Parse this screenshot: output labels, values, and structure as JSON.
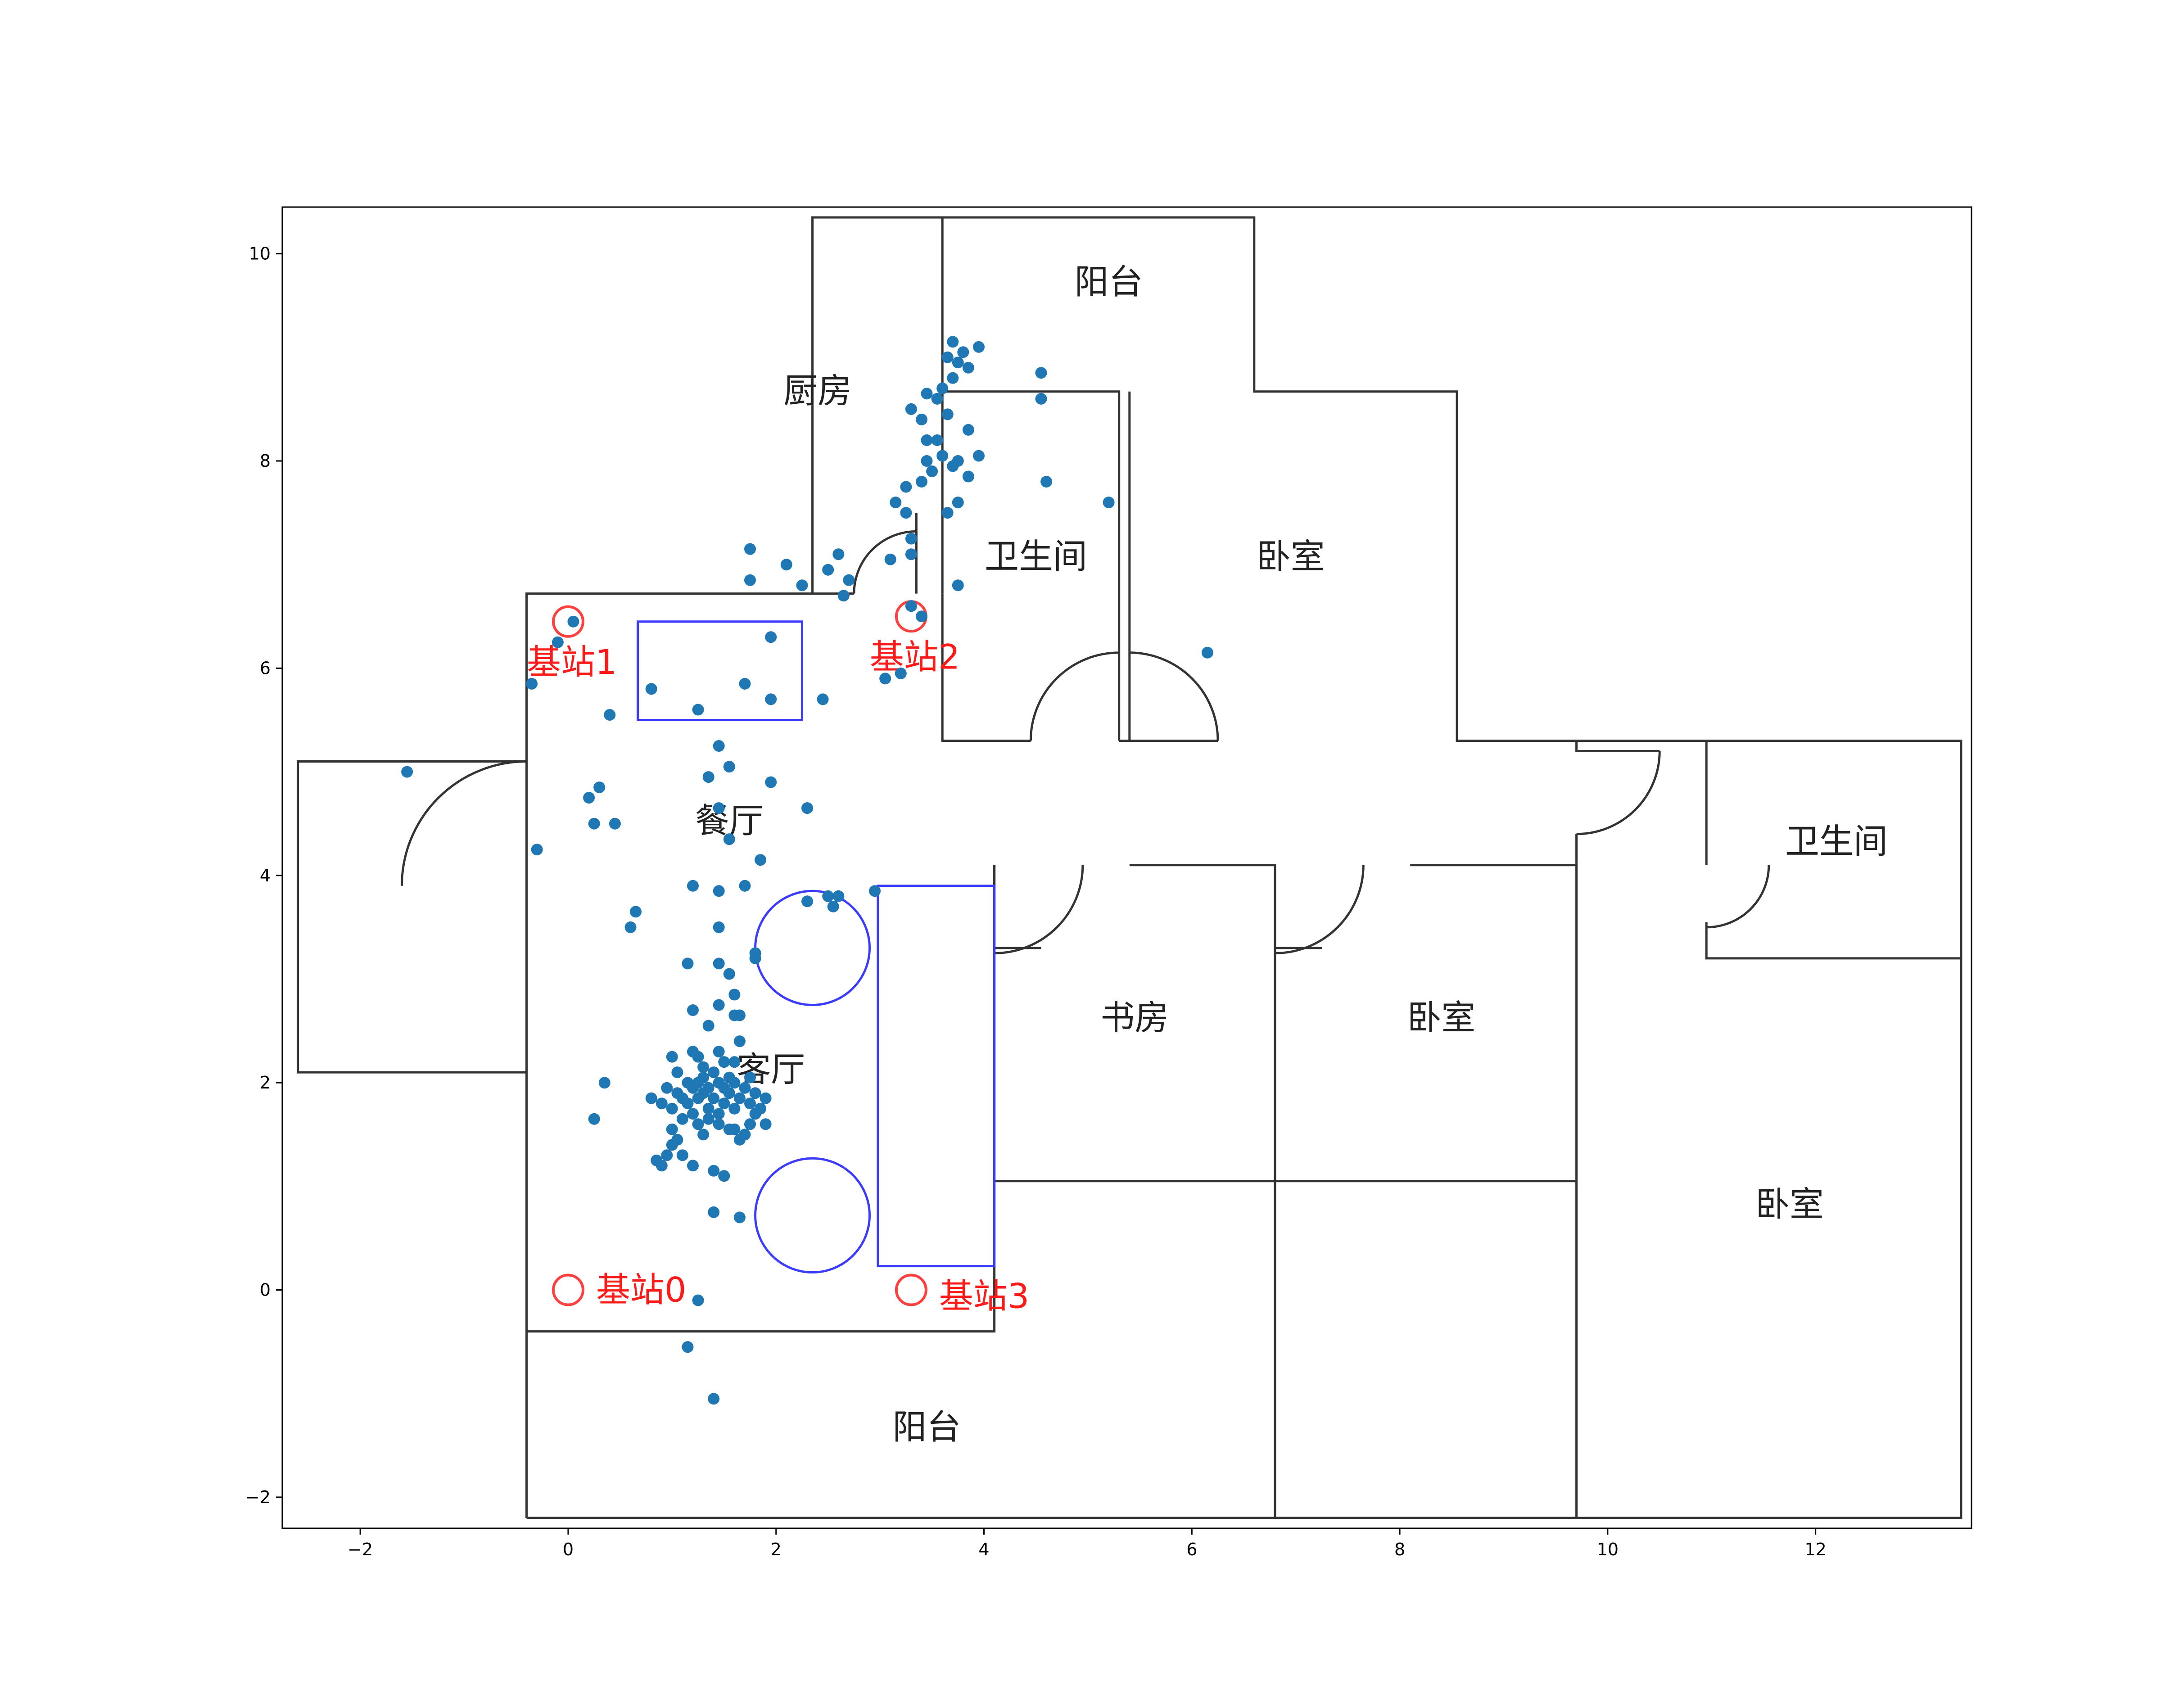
{
  "chart_data": {
    "type": "scatter",
    "title": "",
    "xlabel": "",
    "ylabel": "",
    "xlim": [
      -2.75,
      13.5
    ],
    "ylim": [
      -2.3,
      10.45
    ],
    "xticks": [
      "−2",
      "0",
      "2",
      "4",
      "6",
      "8",
      "10",
      "12"
    ],
    "yticks": [
      "−2",
      "0",
      "2",
      "4",
      "6",
      "8",
      "10"
    ],
    "grid": false,
    "colors": {
      "points": "#1f77b4",
      "walls": "#333333",
      "furniture": "#3b3bff",
      "stations": "#ff4040"
    },
    "rooms": [
      {
        "label": "阳台",
        "x": 5.2,
        "y": 9.7
      },
      {
        "label": "厨房",
        "x": 2.4,
        "y": 8.65
      },
      {
        "label": "卫生间",
        "x": 4.5,
        "y": 7.05
      },
      {
        "label": "卧室",
        "x": 6.95,
        "y": 7.05
      },
      {
        "label": "餐厅",
        "x": 1.55,
        "y": 4.5
      },
      {
        "label": "卫生间",
        "x": 12.2,
        "y": 4.3
      },
      {
        "label": "书房",
        "x": 5.45,
        "y": 2.6
      },
      {
        "label": "卧室",
        "x": 8.4,
        "y": 2.6
      },
      {
        "label": "客厅",
        "x": 1.95,
        "y": 2.1
      },
      {
        "label": "卧室",
        "x": 11.75,
        "y": 0.8
      },
      {
        "label": "阳台",
        "x": 3.45,
        "y": -1.35
      }
    ],
    "stations": [
      {
        "label": "基站0",
        "x": 0.0,
        "y": 0.0
      },
      {
        "label": "基站1",
        "x": 0.0,
        "y": 6.45
      },
      {
        "label": "基站2",
        "x": 3.3,
        "y": 6.5
      },
      {
        "label": "基站3",
        "x": 3.3,
        "y": 0.0
      }
    ],
    "walls": [
      [
        [
          -0.4,
          -2.2
        ],
        [
          -0.4,
          6.72
        ],
        [
          2.35,
          6.72
        ],
        [
          2.35,
          10.35
        ],
        [
          6.6,
          10.35
        ],
        [
          6.6,
          8.67
        ],
        [
          8.55,
          8.67
        ],
        [
          8.55,
          5.3
        ],
        [
          13.4,
          5.3
        ],
        [
          13.4,
          -2.2
        ],
        [
          -0.4,
          -2.2
        ]
      ],
      [
        [
          -0.4,
          5.1
        ],
        [
          -2.6,
          5.1
        ],
        [
          -2.6,
          2.1
        ],
        [
          -0.4,
          2.1
        ]
      ],
      [
        [
          2.35,
          6.72
        ],
        [
          2.75,
          6.72
        ]
      ],
      [
        [
          3.35,
          6.72
        ],
        [
          3.35,
          7.5
        ]
      ],
      [
        [
          3.6,
          6.72
        ],
        [
          3.6,
          10.35
        ]
      ],
      [
        [
          3.6,
          6.72
        ],
        [
          3.6,
          5.3
        ],
        [
          4.45,
          5.3
        ]
      ],
      [
        [
          5.3,
          5.3
        ],
        [
          5.3,
          8.67
        ],
        [
          3.6,
          8.67
        ]
      ],
      [
        [
          5.3,
          5.3
        ],
        [
          5.4,
          5.3
        ],
        [
          5.4,
          8.67
        ]
      ],
      [
        [
          5.4,
          5.3
        ],
        [
          6.25,
          5.3
        ]
      ],
      [
        [
          -0.4,
          -0.4
        ],
        [
          4.1,
          -0.4
        ],
        [
          4.1,
          4.1
        ]
      ],
      [
        [
          4.1,
          1.05
        ],
        [
          9.7,
          1.05
        ]
      ],
      [
        [
          4.1,
          4.1
        ],
        [
          4.1,
          3.3
        ],
        [
          4.55,
          3.3
        ]
      ],
      [
        [
          5.4,
          4.1
        ],
        [
          6.8,
          4.1
        ],
        [
          6.8,
          -2.2
        ]
      ],
      [
        [
          6.8,
          4.1
        ],
        [
          6.8,
          3.3
        ],
        [
          7.25,
          3.3
        ]
      ],
      [
        [
          8.1,
          4.1
        ],
        [
          9.7,
          4.1
        ]
      ],
      [
        [
          9.7,
          5.3
        ],
        [
          9.7,
          5.2
        ],
        [
          10.5,
          5.2
        ]
      ],
      [
        [
          9.7,
          4.4
        ],
        [
          9.7,
          -2.2
        ]
      ],
      [
        [
          10.95,
          5.3
        ],
        [
          10.95,
          4.1
        ]
      ],
      [
        [
          10.95,
          3.55
        ],
        [
          10.95,
          3.2
        ],
        [
          13.4,
          3.2
        ]
      ]
    ],
    "doors": [
      {
        "x": -0.4,
        "y": 3.9,
        "r": 1.2,
        "start": 90,
        "end": 180
      },
      {
        "x": 3.35,
        "y": 6.72,
        "r": 0.6,
        "start": 90,
        "end": 180
      },
      {
        "x": 5.3,
        "y": 5.3,
        "r": 0.85,
        "start": 90,
        "end": 180
      },
      {
        "x": 5.4,
        "y": 5.3,
        "r": 0.85,
        "start": 0,
        "end": 90
      },
      {
        "x": 4.1,
        "y": 4.1,
        "r": 0.85,
        "start": 270,
        "end": 360
      },
      {
        "x": 6.8,
        "y": 4.1,
        "r": 0.85,
        "start": 270,
        "end": 360
      },
      {
        "x": 9.7,
        "y": 5.2,
        "r": 0.8,
        "start": 270,
        "end": 360
      },
      {
        "x": 10.95,
        "y": 4.1,
        "r": 0.6,
        "start": 270,
        "end": 360
      }
    ],
    "furniture": {
      "rects": [
        {
          "x0": 0.67,
          "y0": 5.5,
          "x1": 2.25,
          "y1": 6.45
        },
        {
          "x0": 2.98,
          "y0": 0.23,
          "x1": 4.1,
          "y1": 3.9
        }
      ],
      "circles": [
        {
          "x": 2.35,
          "y": 3.3,
          "r": 0.55
        },
        {
          "x": 2.35,
          "y": 0.72,
          "r": 0.55
        }
      ]
    },
    "points": [
      [
        3.7,
        9.15
      ],
      [
        3.8,
        9.05
      ],
      [
        3.95,
        9.1
      ],
      [
        3.65,
        9.0
      ],
      [
        3.75,
        8.95
      ],
      [
        3.85,
        8.9
      ],
      [
        3.7,
        8.8
      ],
      [
        3.6,
        8.7
      ],
      [
        3.45,
        8.65
      ],
      [
        3.55,
        8.6
      ],
      [
        4.55,
        8.85
      ],
      [
        4.55,
        8.6
      ],
      [
        3.3,
        8.5
      ],
      [
        3.4,
        8.4
      ],
      [
        3.65,
        8.45
      ],
      [
        3.85,
        8.3
      ],
      [
        3.45,
        8.2
      ],
      [
        3.55,
        8.2
      ],
      [
        3.6,
        8.05
      ],
      [
        3.75,
        8.0
      ],
      [
        3.95,
        8.05
      ],
      [
        3.45,
        8.0
      ],
      [
        3.5,
        7.9
      ],
      [
        3.7,
        7.95
      ],
      [
        3.85,
        7.85
      ],
      [
        3.4,
        7.8
      ],
      [
        3.25,
        7.75
      ],
      [
        4.6,
        7.8
      ],
      [
        3.75,
        7.6
      ],
      [
        3.65,
        7.5
      ],
      [
        3.15,
        7.6
      ],
      [
        3.25,
        7.5
      ],
      [
        5.2,
        7.6
      ],
      [
        1.75,
        7.15
      ],
      [
        2.1,
        7.0
      ],
      [
        1.75,
        6.85
      ],
      [
        2.25,
        6.8
      ],
      [
        2.5,
        6.95
      ],
      [
        2.6,
        7.1
      ],
      [
        2.7,
        6.85
      ],
      [
        3.3,
        7.25
      ],
      [
        3.3,
        7.1
      ],
      [
        3.1,
        7.05
      ],
      [
        3.75,
        6.8
      ],
      [
        2.65,
        6.7
      ],
      [
        3.3,
        6.6
      ],
      [
        3.4,
        6.5
      ],
      [
        6.15,
        6.15
      ],
      [
        3.2,
        5.95
      ],
      [
        3.05,
        5.9
      ],
      [
        0.05,
        6.45
      ],
      [
        -0.1,
        6.25
      ],
      [
        -0.35,
        5.85
      ],
      [
        0.8,
        5.8
      ],
      [
        1.7,
        5.85
      ],
      [
        1.95,
        5.7
      ],
      [
        1.95,
        6.3
      ],
      [
        2.45,
        5.7
      ],
      [
        1.25,
        5.6
      ],
      [
        0.4,
        5.55
      ],
      [
        1.45,
        5.25
      ],
      [
        1.55,
        5.05
      ],
      [
        1.35,
        4.95
      ],
      [
        1.95,
        4.9
      ],
      [
        0.3,
        4.85
      ],
      [
        0.2,
        4.75
      ],
      [
        1.45,
        4.65
      ],
      [
        2.3,
        4.65
      ],
      [
        0.25,
        4.5
      ],
      [
        0.45,
        4.5
      ],
      [
        1.55,
        4.35
      ],
      [
        1.85,
        4.15
      ],
      [
        -0.3,
        4.25
      ],
      [
        1.2,
        3.9
      ],
      [
        1.45,
        3.85
      ],
      [
        1.7,
        3.9
      ],
      [
        2.3,
        3.75
      ],
      [
        2.5,
        3.8
      ],
      [
        2.6,
        3.8
      ],
      [
        2.55,
        3.7
      ],
      [
        2.95,
        3.85
      ],
      [
        0.65,
        3.65
      ],
      [
        0.6,
        3.5
      ],
      [
        1.45,
        3.5
      ],
      [
        1.8,
        3.25
      ],
      [
        1.8,
        3.2
      ],
      [
        1.45,
        3.15
      ],
      [
        1.15,
        3.15
      ],
      [
        1.55,
        3.05
      ],
      [
        1.6,
        2.85
      ],
      [
        1.45,
        2.75
      ],
      [
        1.2,
        2.7
      ],
      [
        1.6,
        2.65
      ],
      [
        1.65,
        2.65
      ],
      [
        1.35,
        2.55
      ],
      [
        1.65,
        2.4
      ],
      [
        1.45,
        2.3
      ],
      [
        1.25,
        2.25
      ],
      [
        1.0,
        2.25
      ],
      [
        0.35,
        2.0
      ],
      [
        0.25,
        1.65
      ],
      [
        0.8,
        1.85
      ],
      [
        0.9,
        1.8
      ],
      [
        1.0,
        1.75
      ],
      [
        1.05,
        1.9
      ],
      [
        1.1,
        1.85
      ],
      [
        1.15,
        1.8
      ],
      [
        1.2,
        1.95
      ],
      [
        1.25,
        2.0
      ],
      [
        1.25,
        1.85
      ],
      [
        1.3,
        1.9
      ],
      [
        1.3,
        2.05
      ],
      [
        1.35,
        1.75
      ],
      [
        1.35,
        1.95
      ],
      [
        1.4,
        2.1
      ],
      [
        1.4,
        1.85
      ],
      [
        1.45,
        2.0
      ],
      [
        1.45,
        1.7
      ],
      [
        1.5,
        1.95
      ],
      [
        1.5,
        1.8
      ],
      [
        1.55,
        2.05
      ],
      [
        1.55,
        1.9
      ],
      [
        1.6,
        1.75
      ],
      [
        1.6,
        2.0
      ],
      [
        1.65,
        1.85
      ],
      [
        1.7,
        1.95
      ],
      [
        1.75,
        1.8
      ],
      [
        1.8,
        1.9
      ],
      [
        1.85,
        1.75
      ],
      [
        1.9,
        1.85
      ],
      [
        1.35,
        1.65
      ],
      [
        1.2,
        1.7
      ],
      [
        1.1,
        1.65
      ],
      [
        1.45,
        1.6
      ],
      [
        1.55,
        1.55
      ],
      [
        1.6,
        1.55
      ],
      [
        1.75,
        1.6
      ],
      [
        1.9,
        1.6
      ],
      [
        1.7,
        1.5
      ],
      [
        1.25,
        1.6
      ],
      [
        1.3,
        1.5
      ],
      [
        1.05,
        1.45
      ],
      [
        1.1,
        1.3
      ],
      [
        0.95,
        1.3
      ],
      [
        1.2,
        1.2
      ],
      [
        0.9,
        1.2
      ],
      [
        0.85,
        1.25
      ],
      [
        1.4,
        1.15
      ],
      [
        1.5,
        1.1
      ],
      [
        1.4,
        0.75
      ],
      [
        1.65,
        0.7
      ],
      [
        1.0,
        1.4
      ],
      [
        1.3,
        2.15
      ],
      [
        1.15,
        2.0
      ],
      [
        1.05,
        2.1
      ],
      [
        1.5,
        2.2
      ],
      [
        0.95,
        1.95
      ],
      [
        1.0,
        1.55
      ],
      [
        1.2,
        2.3
      ],
      [
        1.6,
        2.2
      ],
      [
        1.75,
        2.05
      ],
      [
        1.8,
        1.7
      ],
      [
        1.65,
        1.45
      ],
      [
        1.25,
        -0.1
      ],
      [
        1.15,
        -0.55
      ],
      [
        1.4,
        -1.05
      ],
      [
        -1.55,
        5.0
      ]
    ]
  }
}
